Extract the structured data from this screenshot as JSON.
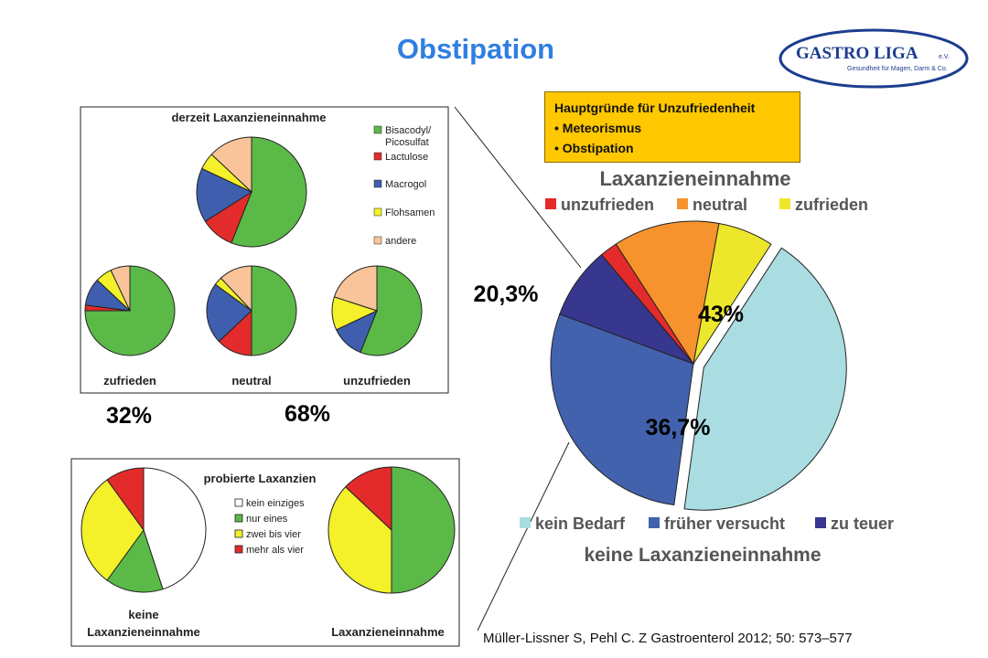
{
  "slide": {
    "title": "Obstipation",
    "logo_text": "GASTRO LIGA",
    "logo_suffix": "e.V.",
    "logo_tagline": "Gesundheit für Magen, Darm & Co.",
    "citation": "Müller-Lissner S, Pehl C.  Z Gastroenterol 2012; 50: 573–577",
    "infobox": {
      "title": "Hauptgründe für Unzufriedenheit",
      "items": [
        "Meteorismus",
        "Obstipation"
      ]
    },
    "percent_labels": {
      "left_yes": "32%",
      "left_no": "68%",
      "main_satisfied": "20,3%",
      "main_kein_bedarf": "43%",
      "main_frueher": "36,7%"
    }
  },
  "colors": {
    "green": "#5bba47",
    "red": "#e32b2b",
    "blue": "#3f5fae",
    "yellow": "#f4f02a",
    "peach": "#f9c49a",
    "white": "#ffffff",
    "orange": "#f7932d",
    "light_yellow": "#ede72c",
    "light_cyan": "#a9dde2",
    "mid_blue": "#4262ad",
    "navy": "#37378f"
  },
  "chart_data": [
    {
      "type": "pie",
      "title": "derzeit Laxanzieneinnahme",
      "legend": [
        "Bisacodyl/ Picosulfat",
        "Lactulose",
        "Macrogol",
        "Flohsamen",
        "andere"
      ],
      "legend_position": "right",
      "pies": [
        {
          "name": "",
          "values": [
            56,
            10,
            16,
            5,
            13
          ]
        },
        {
          "name": "zufrieden",
          "values": [
            75,
            2,
            10,
            6,
            7
          ]
        },
        {
          "name": "neutral",
          "values": [
            50,
            13,
            22,
            3,
            12
          ]
        },
        {
          "name": "unzufrieden",
          "values": [
            56,
            0,
            12,
            12,
            20
          ]
        }
      ]
    },
    {
      "type": "pie",
      "title": "probierte Laxanzien",
      "legend": [
        "kein einziges",
        "nur eines",
        "zwei bis vier",
        "mehr als vier"
      ],
      "legend_position": "center",
      "pies": [
        {
          "name": "keine Laxanzieneinnahme",
          "values": [
            45,
            15,
            30,
            10
          ]
        },
        {
          "name": "Laxanzieneinnahme",
          "values": [
            0,
            50,
            37,
            13
          ]
        }
      ]
    },
    {
      "type": "pie",
      "title": "Laxanzieneinnahme",
      "subtitle": "keine Laxanzieneinnahme",
      "legend_top": [
        "unzufrieden",
        "neutral",
        "zufrieden"
      ],
      "legend_bottom": [
        "kein Bedarf",
        "früher versucht",
        "zu teuer"
      ],
      "slices": [
        {
          "label": "kein Bedarf",
          "value": 43.0
        },
        {
          "label": "früher versucht",
          "value": 28.5
        },
        {
          "label": "zu teuer",
          "value": 8.2
        },
        {
          "label": "unzufrieden",
          "value": 2.0
        },
        {
          "label": "neutral",
          "value": 12.0
        },
        {
          "label": "zufrieden",
          "value": 6.3
        }
      ]
    }
  ]
}
